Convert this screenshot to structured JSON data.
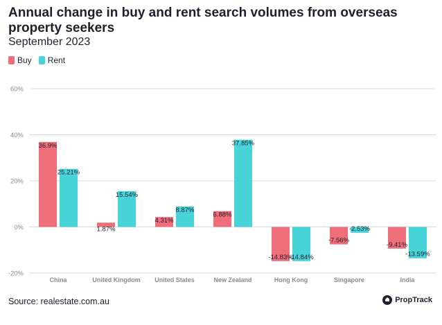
{
  "title": "Annual change in buy and rent search volumes from overseas property seekers",
  "subtitle": "September 2023",
  "source": "Source: realestate.com.au",
  "brand": "PropTrack",
  "colors": {
    "buy": "#ee6e7a",
    "rent": "#48d3d9",
    "grid": "#dadada",
    "axis_text": "#8a8a8a"
  },
  "chart_data": {
    "type": "bar",
    "title": "Annual change in buy and rent search volumes from overseas property seekers",
    "subtitle": "September 2023",
    "categories": [
      "China",
      "United Kingdom",
      "United States",
      "New Zealand",
      "Hong Kong",
      "Singapore",
      "India"
    ],
    "series": [
      {
        "name": "Buy",
        "values": [
          36.9,
          1.87,
          4.31,
          6.88,
          -14.83,
          -7.56,
          -9.41
        ],
        "labels": [
          "36.9%",
          "1.87%",
          "4.31%",
          "6.88%",
          "-14.83%",
          "-7.56%",
          "-9.41%"
        ]
      },
      {
        "name": "Rent",
        "values": [
          25.21,
          15.54,
          8.87,
          37.85,
          -14.84,
          -2.53,
          -13.59
        ],
        "labels": [
          "25.21%",
          "15.54%",
          "8.87%",
          "37.85%",
          "-14.84%",
          "-2.53%",
          "-13.59%"
        ]
      }
    ],
    "yticks": [
      -20,
      0,
      20,
      40,
      60
    ],
    "ytick_labels": [
      "-20%",
      "0%",
      "20%",
      "40%",
      "60%"
    ],
    "ylim": [
      -20,
      60
    ],
    "xlabel": "",
    "ylabel": "",
    "grid": true,
    "legend": "top-left"
  }
}
